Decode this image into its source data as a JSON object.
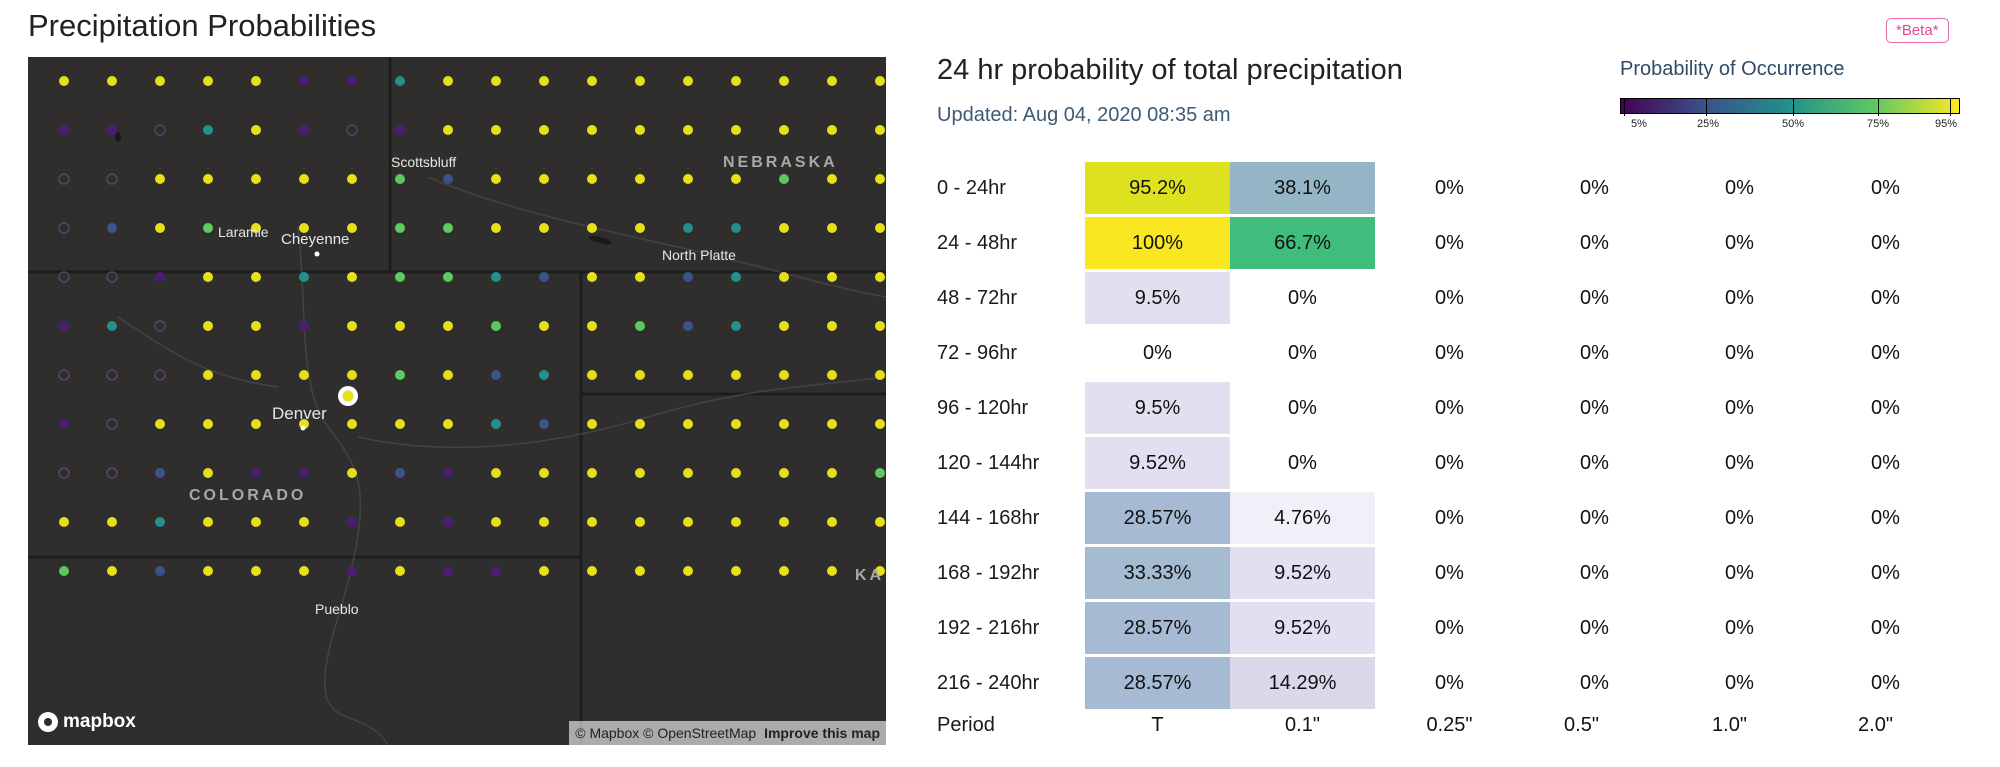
{
  "header": {
    "title": "Precipitation Probabilities",
    "beta_label": "*Beta*"
  },
  "map": {
    "labels": {
      "scottsbluff": "Scottsbluff",
      "laramie": "Laramie",
      "cheyenne": "Cheyenne",
      "north_platte": "North Platte",
      "denver": "Denver",
      "pueblo": "Pueblo",
      "nebraska": "NEBRASKA",
      "colorado": "COLORADO",
      "kansas_partial": "KA"
    },
    "logo_text": "mapbox",
    "attribution": "© Mapbox © OpenStreetMap",
    "improve_link": "Improve this map",
    "dot_colors": {
      "Y": "#e6e01a",
      "G": "#5ec962",
      "T": "#21918c",
      "B": "#3b528b",
      "P": "#4a1c78",
      "O": "outline"
    },
    "dot_rows": [
      "YYYYYPPTYYYYYYYYYY",
      "PPOTYPOPYYYYYYYYYY",
      "OOYYYYYGBYYYYYYGYY",
      "OBYGYYYGGYYYYTTYYY",
      "OOPYYTYGGTBYYBTYYY",
      "PTOYYPYYYGYYGBTYYY",
      "OOOYYYYGYBTYYYYYYY",
      "POYYYYYYYTBYYYYYYY",
      "OOBYPPYBPYYYYYYYYG",
      "YYTYYYPYPYYYYYYYYY",
      "GYBYYYPYPPYYYYYYYY"
    ],
    "selected_marker_color": "#e6e01a"
  },
  "panel": {
    "title": "24 hr probability of total precipitation",
    "updated": "Updated: Aug 04, 2020 08:35 am"
  },
  "legend": {
    "title": "Probability of Occurrence",
    "ticks": [
      "5%",
      "25%",
      "50%",
      "75%",
      "95%"
    ]
  },
  "table": {
    "rows": [
      {
        "label": "0 - 24hr",
        "cells": [
          "95.2%",
          "38.1%",
          "0%",
          "0%",
          "0%",
          "0%"
        ],
        "colors": [
          "#dde11e",
          "#94b5c6",
          "",
          "",
          "",
          ""
        ]
      },
      {
        "label": "24 - 48hr",
        "cells": [
          "100%",
          "66.7%",
          "0%",
          "0%",
          "0%",
          "0%"
        ],
        "colors": [
          "#fbe622",
          "#40bd7d",
          "",
          "",
          "",
          ""
        ]
      },
      {
        "label": "48 - 72hr",
        "cells": [
          "9.5%",
          "0%",
          "0%",
          "0%",
          "0%",
          "0%"
        ],
        "colors": [
          "#e3dff0",
          "",
          "",
          "",
          "",
          ""
        ]
      },
      {
        "label": "72 - 96hr",
        "cells": [
          "0%",
          "0%",
          "0%",
          "0%",
          "0%",
          "0%"
        ],
        "colors": [
          "",
          "",
          "",
          "",
          "",
          ""
        ]
      },
      {
        "label": "96 - 120hr",
        "cells": [
          "9.5%",
          "0%",
          "0%",
          "0%",
          "0%",
          "0%"
        ],
        "colors": [
          "#e3dff0",
          "",
          "",
          "",
          "",
          ""
        ]
      },
      {
        "label": "120 - 144hr",
        "cells": [
          "9.52%",
          "0%",
          "0%",
          "0%",
          "0%",
          "0%"
        ],
        "colors": [
          "#e3dff0",
          "",
          "",
          "",
          "",
          ""
        ]
      },
      {
        "label": "144 - 168hr",
        "cells": [
          "28.57%",
          "4.76%",
          "0%",
          "0%",
          "0%",
          "0%"
        ],
        "colors": [
          "#a7bad3",
          "#f1eff8",
          "",
          "",
          "",
          ""
        ]
      },
      {
        "label": "168 - 192hr",
        "cells": [
          "33.33%",
          "9.52%",
          "0%",
          "0%",
          "0%",
          "0%"
        ],
        "colors": [
          "#a5bcd0",
          "#e3dff0",
          "",
          "",
          "",
          ""
        ]
      },
      {
        "label": "192 - 216hr",
        "cells": [
          "28.57%",
          "9.52%",
          "0%",
          "0%",
          "0%",
          "0%"
        ],
        "colors": [
          "#a7bad3",
          "#e3dff0",
          "",
          "",
          "",
          ""
        ]
      },
      {
        "label": "216 - 240hr",
        "cells": [
          "28.57%",
          "14.29%",
          "0%",
          "0%",
          "0%",
          "0%"
        ],
        "colors": [
          "#a7bad3",
          "#dcd7e9",
          "",
          "",
          "",
          ""
        ]
      }
    ],
    "period_label": "Period",
    "periods": [
      "T",
      "0.1\"",
      "0.25\"",
      "0.5\"",
      "1.0\"",
      "2.0\""
    ]
  }
}
